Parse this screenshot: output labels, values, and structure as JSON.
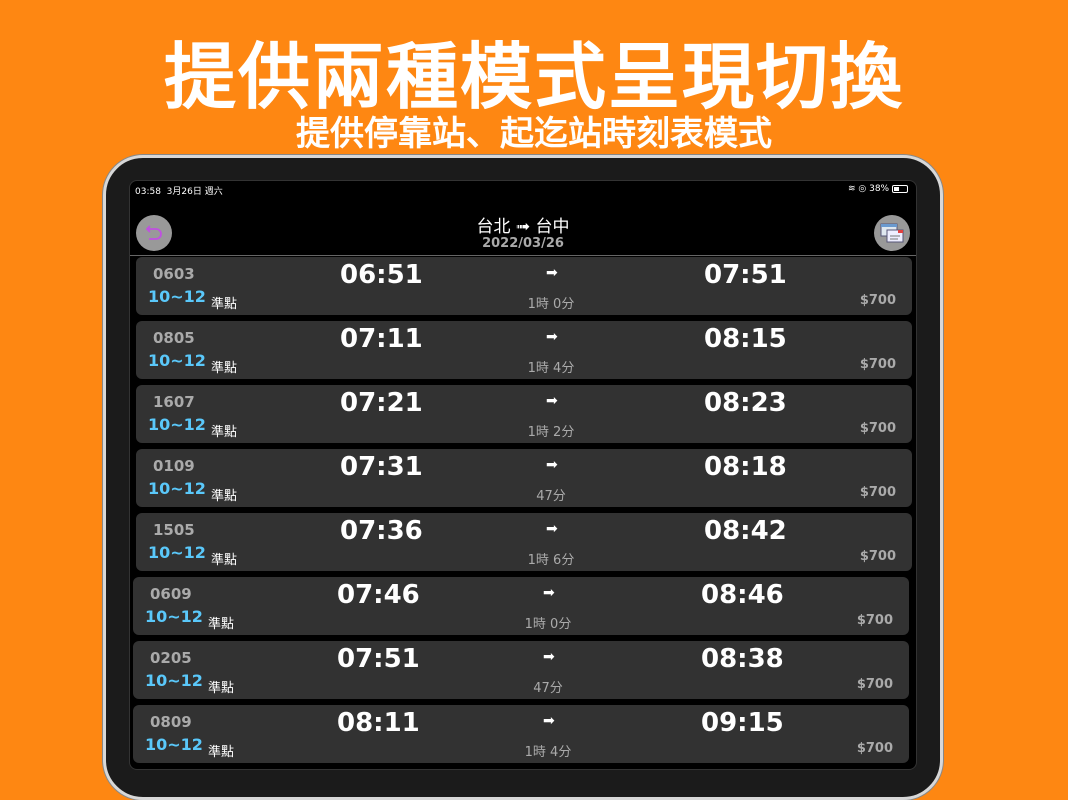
{
  "banner": {
    "title": "提供兩種模式呈現切換",
    "subtitle": "提供停靠站、起迄站時刻表模式"
  },
  "status": {
    "time": "03:58",
    "date": "3月26日 週六",
    "battery": "38%"
  },
  "header": {
    "route": "台北 ➟ 台中",
    "date": "2022/03/26"
  },
  "colors": {
    "background": "#fe8712",
    "class": "#5ac8fa",
    "back_icon": "#c050e0"
  },
  "trains": [
    {
      "no": "0603",
      "class": "10~12",
      "status": "準點",
      "dep": "06:51",
      "arr": "07:51",
      "duration": "1時 0分",
      "price": "$700"
    },
    {
      "no": "0805",
      "class": "10~12",
      "status": "準點",
      "dep": "07:11",
      "arr": "08:15",
      "duration": "1時 4分",
      "price": "$700"
    },
    {
      "no": "1607",
      "class": "10~12",
      "status": "準點",
      "dep": "07:21",
      "arr": "08:23",
      "duration": "1時 2分",
      "price": "$700"
    },
    {
      "no": "0109",
      "class": "10~12",
      "status": "準點",
      "dep": "07:31",
      "arr": "08:18",
      "duration": "47分",
      "price": "$700"
    },
    {
      "no": "1505",
      "class": "10~12",
      "status": "準點",
      "dep": "07:36",
      "arr": "08:42",
      "duration": "1時 6分",
      "price": "$700"
    },
    {
      "no": "0609",
      "class": "10~12",
      "status": "準點",
      "dep": "07:46",
      "arr": "08:46",
      "duration": "1時 0分",
      "price": "$700"
    },
    {
      "no": "0205",
      "class": "10~12",
      "status": "準點",
      "dep": "07:51",
      "arr": "08:38",
      "duration": "47分",
      "price": "$700"
    },
    {
      "no": "0809",
      "class": "10~12",
      "status": "準點",
      "dep": "08:11",
      "arr": "09:15",
      "duration": "1時 4分",
      "price": "$700"
    }
  ],
  "arrow": "➡"
}
